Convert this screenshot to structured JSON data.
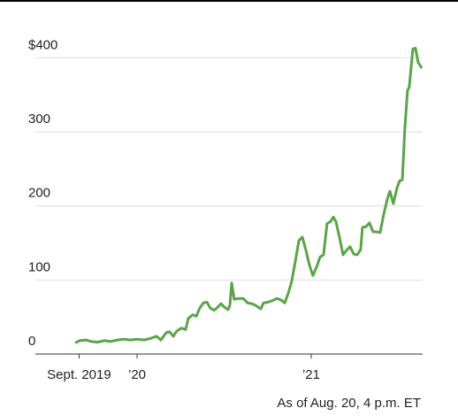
{
  "chart_data": {
    "type": "line",
    "note": "As of Aug. 20, 4 p.m. ET",
    "x": [
      2019.645,
      2019.67,
      2019.706,
      2019.736,
      2019.772,
      2019.812,
      2019.848,
      2019.888,
      2019.924,
      2019.964,
      2020.0,
      2020.041,
      2020.076,
      2020.112,
      2020.137,
      2020.168,
      2020.188,
      2020.208,
      2020.228,
      2020.254,
      2020.279,
      2020.294,
      2020.32,
      2020.34,
      2020.36,
      2020.381,
      2020.401,
      2020.421,
      2020.442,
      2020.462,
      2020.482,
      2020.503,
      2020.523,
      2020.533,
      2020.543,
      2020.558,
      2020.584,
      2020.609,
      2020.635,
      2020.66,
      2020.685,
      2020.711,
      2020.726,
      2020.751,
      2020.777,
      2020.802,
      2020.827,
      2020.848,
      2020.868,
      2020.888,
      2020.909,
      2020.929,
      2020.949,
      2020.97,
      2020.99,
      2021.01,
      2021.03,
      2021.051,
      2021.071,
      2021.091,
      2021.112,
      2021.127,
      2021.142,
      2021.162,
      2021.183,
      2021.203,
      2021.223,
      2021.244,
      2021.264,
      2021.284,
      2021.294,
      2021.315,
      2021.335,
      2021.355,
      2021.376,
      2021.396,
      2021.416,
      2021.437,
      2021.452,
      2021.472,
      2021.492,
      2021.508,
      2021.523,
      2021.538,
      2021.553,
      2021.563,
      2021.584,
      2021.599,
      2021.614,
      2021.635
    ],
    "series": [
      {
        "color": "#5ba449",
        "values": [
          15,
          18,
          19,
          17,
          16,
          18,
          17,
          19,
          20,
          19,
          20,
          19,
          21,
          24,
          19,
          29,
          30,
          24,
          31,
          35,
          33,
          48,
          53,
          51,
          62,
          69,
          70,
          62,
          59,
          63,
          68,
          63,
          60,
          66,
          96,
          74,
          75,
          75,
          69,
          68,
          65,
          61,
          69,
          70,
          72,
          75,
          73,
          69,
          82,
          98,
          125,
          153,
          158,
          140,
          120,
          106,
          117,
          131,
          134,
          176,
          179,
          185,
          179,
          158,
          134,
          140,
          145,
          135,
          134,
          141,
          171,
          172,
          177,
          165,
          165,
          164,
          188,
          209,
          220,
          203,
          224,
          234,
          235,
          305,
          356,
          360,
          412,
          413,
          394,
          386
        ]
      }
    ],
    "xlim": [
      2019.416,
      2021.64
    ],
    "xticks": [
      {
        "value": 2019.667,
        "label": "Sept. 2019"
      },
      {
        "value": 2020.0,
        "label": "’20"
      },
      {
        "value": 2021.0,
        "label": "’21"
      }
    ],
    "ylim": [
      0,
      440
    ],
    "yticks": [
      0,
      100,
      200,
      300,
      {
        "value": 400,
        "label": "$400"
      }
    ],
    "grid": true
  }
}
